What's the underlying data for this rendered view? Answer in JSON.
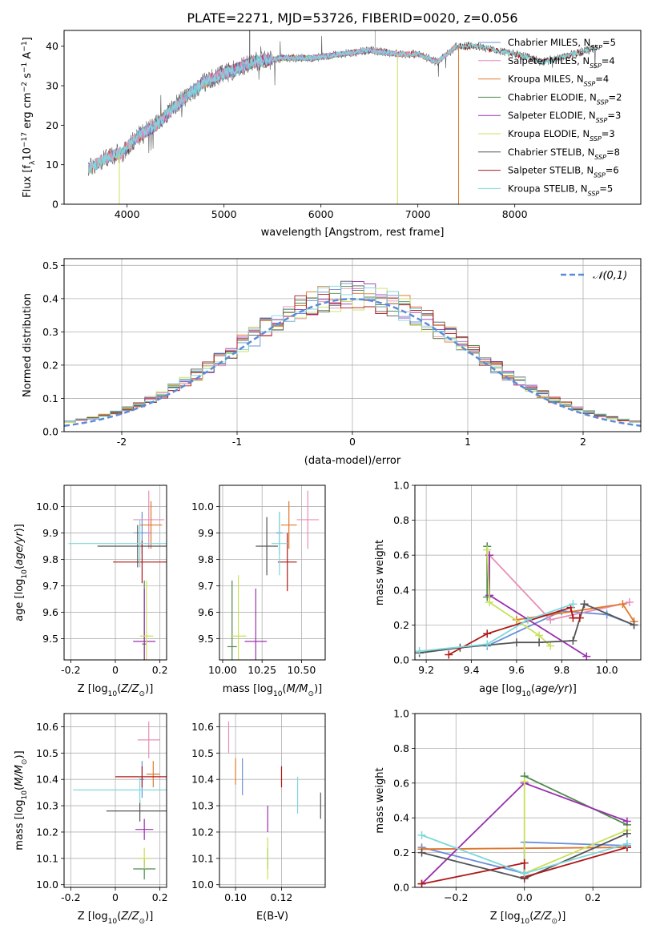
{
  "figure_title": "PLATE=2271, MJD=53726, FIBERID=0020, z=0.056",
  "colors": {
    "Chabrier MILES": "#6b8fd8",
    "Salpeter MILES": "#e88fb8",
    "Kroupa MILES": "#e0792a",
    "Chabrier ELODIE": "#4e8a4e",
    "Salpeter ELODIE": "#9b2fb0",
    "Kroupa ELODIE": "#c8e05a",
    "Chabrier STELIB": "#555555",
    "Salpeter STELIB": "#b01818",
    "Kroupa STELIB": "#7dd8dc"
  },
  "chart_data": [
    {
      "id": "spectrum",
      "type": "line",
      "xlabel": "wavelength [Angstrom, rest frame]",
      "ylabel": "Flux [f_λ10^-17 erg cm^-2 s^-1 A^-1]",
      "xlim": [
        3350,
        9300
      ],
      "ylim": [
        0,
        44
      ],
      "xticks": [
        4000,
        5000,
        6000,
        7000,
        8000
      ],
      "yticks": [
        0,
        10,
        20,
        30,
        40
      ],
      "grid": false,
      "legend_position": "right",
      "legend": [
        "Chabrier MILES, N_SSP=5",
        "Salpeter MILES, N_SSP=4",
        "Kroupa MILES, N_SSP=4",
        "Chabrier ELODIE, N_SSP=2",
        "Salpeter ELODIE, N_SSP=3",
        "Kroupa ELODIE, N_SSP=3",
        "Chabrier STELIB, N_SSP=8",
        "Salpeter STELIB, N_SSP=6",
        "Kroupa STELIB, N_SSP=5"
      ],
      "continuum": {
        "x": [
          3600,
          3800,
          3950,
          4100,
          4300,
          4500,
          4800,
          5000,
          5300,
          5600,
          5900,
          6200,
          6500,
          6800,
          7000,
          7200,
          7400,
          7600,
          7800,
          8000,
          8300,
          8600,
          8900
        ],
        "y": [
          9,
          12,
          13,
          17,
          20,
          25,
          31,
          33,
          36,
          37,
          37,
          38,
          39,
          38,
          38,
          36,
          40,
          40,
          39,
          38,
          36,
          38,
          40
        ]
      }
    },
    {
      "id": "residuals",
      "type": "histogram",
      "xlabel": "(data-model)/error",
      "ylabel": "Normed distribution",
      "xlim": [
        -2.5,
        2.5
      ],
      "ylim": [
        0,
        0.52
      ],
      "xticks": [
        -2,
        -1,
        0,
        1,
        2
      ],
      "yticks": [
        0.0,
        0.1,
        0.2,
        0.3,
        0.4,
        0.5
      ],
      "grid": true,
      "legend_position": "top-right",
      "legend": [
        "𝒩(0,1)"
      ],
      "gaussian": {
        "mu": 0,
        "sigma": 1
      }
    },
    {
      "id": "age-vs-Z",
      "type": "errorbar",
      "xlabel": "Z [log10(Z/Z⊙)]",
      "ylabel": "age [log10(age/yr)]",
      "xlim": [
        -0.23,
        0.23
      ],
      "ylim": [
        9.42,
        10.08
      ],
      "xticks": [
        -0.2,
        0.0,
        0.2
      ],
      "yticks": [
        9.5,
        9.6,
        9.7,
        9.8,
        9.9,
        10.0
      ],
      "grid": true,
      "points": [
        {
          "model": "Chabrier MILES",
          "x": 0.12,
          "xerr": 0.04,
          "y": 9.9,
          "yerr": 0.08
        },
        {
          "model": "Salpeter MILES",
          "x": 0.15,
          "xerr": 0.07,
          "y": 9.95,
          "yerr": 0.11
        },
        {
          "model": "Kroupa MILES",
          "x": 0.16,
          "xerr": 0.05,
          "y": 9.93,
          "yerr": 0.09
        },
        {
          "model": "Chabrier ELODIE",
          "x": 0.13,
          "xerr": 0.01,
          "y": 9.48,
          "yerr": 0.24
        },
        {
          "model": "Salpeter ELODIE",
          "x": 0.13,
          "xerr": 0.05,
          "y": 9.49,
          "yerr": 0.2
        },
        {
          "model": "Kroupa ELODIE",
          "x": 0.14,
          "xerr": 0.03,
          "y": 9.51,
          "yerr": 0.21
        },
        {
          "model": "Chabrier STELIB",
          "x": 0.1,
          "xerr": 0.18,
          "y": 9.85,
          "yerr": 0.08
        },
        {
          "model": "Salpeter STELIB",
          "x": 0.12,
          "xerr": 0.13,
          "y": 9.79,
          "yerr": 0.08
        },
        {
          "model": "Kroupa STELIB",
          "x": 0.11,
          "xerr": 0.32,
          "y": 9.86,
          "yerr": 0.09
        }
      ]
    },
    {
      "id": "age-vs-mass",
      "type": "errorbar",
      "xlabel": "mass [log10(M/M⊙)]",
      "xlim": [
        9.98,
        10.65
      ],
      "ylim": [
        9.42,
        10.08
      ],
      "xticks": [
        10.0,
        10.25,
        10.5
      ],
      "yticks": [
        9.5,
        9.6,
        9.7,
        9.8,
        9.9,
        10.0
      ],
      "grid": true,
      "points": [
        {
          "model": "Chabrier MILES",
          "x": 10.36,
          "xerr": 0.02,
          "y": 9.9,
          "yerr": 0.08
        },
        {
          "model": "Salpeter MILES",
          "x": 10.54,
          "xerr": 0.07,
          "y": 9.95,
          "yerr": 0.11
        },
        {
          "model": "Kroupa MILES",
          "x": 10.42,
          "xerr": 0.05,
          "y": 9.93,
          "yerr": 0.09
        },
        {
          "model": "Chabrier ELODIE",
          "x": 10.06,
          "xerr": 0.03,
          "y": 9.47,
          "yerr": 0.25
        },
        {
          "model": "Salpeter ELODIE",
          "x": 10.21,
          "xerr": 0.07,
          "y": 9.49,
          "yerr": 0.2
        },
        {
          "model": "Kroupa ELODIE",
          "x": 10.1,
          "xerr": 0.05,
          "y": 9.51,
          "yerr": 0.23
        },
        {
          "model": "Chabrier STELIB",
          "x": 10.28,
          "xerr": 0.07,
          "y": 9.85,
          "yerr": 0.11
        },
        {
          "model": "Salpeter STELIB",
          "x": 10.41,
          "xerr": 0.06,
          "y": 9.79,
          "yerr": 0.11
        },
        {
          "model": "Kroupa STELIB",
          "x": 10.36,
          "xerr": 0.05,
          "y": 9.86,
          "yerr": 0.12
        }
      ]
    },
    {
      "id": "weight-vs-age",
      "type": "line",
      "xlabel": "age [log10(age/yr)]",
      "ylabel": "mass weight",
      "xlim": [
        9.15,
        10.15
      ],
      "ylim": [
        0,
        1
      ],
      "xticks": [
        9.2,
        9.4,
        9.6,
        9.8,
        10.0
      ],
      "yticks": [
        0.0,
        0.2,
        0.4,
        0.6,
        0.8,
        1.0
      ],
      "grid": true,
      "series": [
        {
          "model": "Chabrier MILES",
          "x": [
            9.47,
            9.8,
            10.0,
            10.12
          ],
          "y": [
            0.08,
            0.28,
            0.26,
            0.2
          ]
        },
        {
          "model": "Salpeter MILES",
          "x": [
            9.48,
            9.75,
            10.1
          ],
          "y": [
            0.6,
            0.23,
            0.33
          ]
        },
        {
          "model": "Kroupa MILES",
          "x": [
            9.6,
            10.07,
            10.12
          ],
          "y": [
            0.23,
            0.32,
            0.22
          ]
        },
        {
          "model": "Chabrier ELODIE",
          "x": [
            9.47,
            9.47
          ],
          "y": [
            0.36,
            0.65
          ]
        },
        {
          "model": "Salpeter ELODIE",
          "x": [
            9.48,
            9.48,
            9.91
          ],
          "y": [
            0.6,
            0.37,
            0.02
          ]
        },
        {
          "model": "Kroupa ELODIE",
          "x": [
            9.47,
            9.48,
            9.7,
            9.75
          ],
          "y": [
            0.63,
            0.33,
            0.14,
            0.08
          ]
        },
        {
          "model": "Chabrier STELIB",
          "x": [
            9.17,
            9.35,
            9.6,
            9.7,
            9.85,
            9.9,
            10.12
          ],
          "y": [
            0.04,
            0.07,
            0.1,
            0.1,
            0.11,
            0.32,
            0.2
          ]
        },
        {
          "model": "Salpeter STELIB",
          "x": [
            9.3,
            9.47,
            9.84,
            9.85,
            9.88
          ],
          "y": [
            0.03,
            0.15,
            0.3,
            0.24,
            0.24
          ]
        },
        {
          "model": "Kroupa STELIB",
          "x": [
            9.17,
            9.47,
            9.65,
            9.85
          ],
          "y": [
            0.05,
            0.09,
            0.23,
            0.32
          ]
        }
      ]
    },
    {
      "id": "mass-vs-Z",
      "type": "errorbar",
      "xlabel": "Z [log10(Z/Z⊙)]",
      "ylabel": "mass [log10(M/M⊙)]",
      "xlim": [
        -0.23,
        0.23
      ],
      "ylim": [
        9.99,
        10.65
      ],
      "xticks": [
        -0.2,
        0.0,
        0.2
      ],
      "yticks": [
        10.0,
        10.1,
        10.2,
        10.3,
        10.4,
        10.5,
        10.6
      ],
      "grid": true,
      "points": [
        {
          "model": "Chabrier MILES",
          "x": 0.12,
          "xerr": 0.01,
          "y": 10.4,
          "yerr": 0.07
        },
        {
          "model": "Salpeter MILES",
          "x": 0.15,
          "xerr": 0.05,
          "y": 10.55,
          "yerr": 0.07
        },
        {
          "model": "Kroupa MILES",
          "x": 0.17,
          "xerr": 0.03,
          "y": 10.42,
          "yerr": 0.05
        },
        {
          "model": "Chabrier ELODIE",
          "x": 0.13,
          "xerr": 0.05,
          "y": 10.06,
          "yerr": 0.04
        },
        {
          "model": "Salpeter ELODIE",
          "x": 0.13,
          "xerr": 0.04,
          "y": 10.21,
          "yerr": 0.04
        },
        {
          "model": "Kroupa ELODIE",
          "x": 0.13,
          "xerr": 0.03,
          "y": 10.1,
          "yerr": 0.04
        },
        {
          "model": "Chabrier STELIB",
          "x": 0.11,
          "xerr": 0.15,
          "y": 10.28,
          "yerr": 0.04
        },
        {
          "model": "Salpeter STELIB",
          "x": 0.12,
          "xerr": 0.12,
          "y": 10.41,
          "yerr": 0.04
        },
        {
          "model": "Kroupa STELIB",
          "x": 0.11,
          "xerr": 0.3,
          "y": 10.36,
          "yerr": 0.05
        }
      ]
    },
    {
      "id": "mass-vs-EBV",
      "type": "errorbar",
      "xlabel": "E(B-V)",
      "xlim": [
        0.093,
        0.139
      ],
      "ylim": [
        9.99,
        10.65
      ],
      "xticks": [
        0.1,
        0.12
      ],
      "yticks": [
        10.0,
        10.1,
        10.2,
        10.3,
        10.4,
        10.5,
        10.6
      ],
      "grid": true,
      "points": [
        {
          "model": "Chabrier MILES",
          "x": 0.103,
          "y": 10.41,
          "yerr": 0.07
        },
        {
          "model": "Salpeter MILES",
          "x": 0.097,
          "y": 10.56,
          "yerr": 0.06
        },
        {
          "model": "Kroupa MILES",
          "x": 0.1,
          "y": 10.43,
          "yerr": 0.05
        },
        {
          "model": "Chabrier ELODIE",
          "x": 0.114,
          "y": 10.1,
          "yerr": 0.04
        },
        {
          "model": "Salpeter ELODIE",
          "x": 0.114,
          "y": 10.25,
          "yerr": 0.05
        },
        {
          "model": "Kroupa ELODIE",
          "x": 0.114,
          "y": 10.1,
          "yerr": 0.08
        },
        {
          "model": "Chabrier STELIB",
          "x": 0.137,
          "y": 10.3,
          "yerr": 0.05
        },
        {
          "model": "Salpeter STELIB",
          "x": 0.12,
          "y": 10.41,
          "yerr": 0.04
        },
        {
          "model": "Kroupa STELIB",
          "x": 0.127,
          "y": 10.34,
          "yerr": 0.07
        }
      ]
    },
    {
      "id": "weight-vs-Z",
      "type": "line",
      "xlabel": "Z [log10(Z/Z⊙)]",
      "ylabel": "mass weight",
      "xlim": [
        -0.32,
        0.34
      ],
      "ylim": [
        0,
        1
      ],
      "xticks": [
        -0.2,
        0.0,
        0.2
      ],
      "yticks": [
        0.0,
        0.2,
        0.4,
        0.6,
        0.8,
        1.0
      ],
      "grid": true,
      "series": [
        {
          "model": "Chabrier MILES",
          "x": [
            -0.3,
            0.0,
            0.0,
            0.3
          ],
          "y": [
            0.23,
            0.08,
            0.26,
            0.24
          ]
        },
        {
          "model": "Salpeter MILES",
          "x": [
            -0.3,
            0.3
          ],
          "y": [
            0.22,
            0.23
          ]
        },
        {
          "model": "Kroupa MILES",
          "x": [
            -0.3,
            0.3
          ],
          "y": [
            0.22,
            0.23
          ]
        },
        {
          "model": "Chabrier ELODIE",
          "x": [
            0.0,
            0.3
          ],
          "y": [
            0.64,
            0.36
          ]
        },
        {
          "model": "Salpeter ELODIE",
          "x": [
            -0.3,
            0.0,
            0.3
          ],
          "y": [
            0.02,
            0.6,
            0.38
          ]
        },
        {
          "model": "Kroupa ELODIE",
          "x": [
            0.0,
            0.0,
            0.3
          ],
          "y": [
            0.61,
            0.08,
            0.33
          ]
        },
        {
          "model": "Chabrier STELIB",
          "x": [
            -0.3,
            0.0,
            0.3
          ],
          "y": [
            0.2,
            0.05,
            0.31
          ]
        },
        {
          "model": "Salpeter STELIB",
          "x": [
            -0.3,
            0.0,
            0.0,
            0.3
          ],
          "y": [
            0.02,
            0.14,
            0.06,
            0.23
          ]
        },
        {
          "model": "Kroupa STELIB",
          "x": [
            -0.3,
            0.0,
            0.3
          ],
          "y": [
            0.3,
            0.08,
            0.25
          ]
        }
      ]
    }
  ]
}
